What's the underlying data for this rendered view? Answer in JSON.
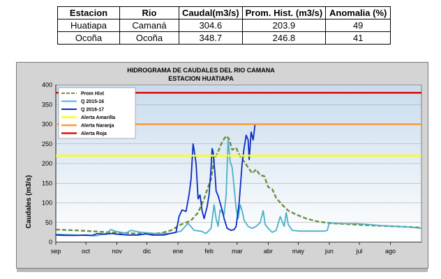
{
  "table": {
    "headers": [
      "Estacion",
      "Rio",
      "Caudal(m3/s)",
      "Prom. Hist. (m3/s)",
      "Anomalia (%)"
    ],
    "rows": [
      [
        "Huatiapa",
        "Camaná",
        "304.6",
        "203.9",
        "49"
      ],
      [
        "Ocoña",
        "Ocoña",
        "348.7",
        "246.8",
        "41"
      ]
    ]
  },
  "chart_data": {
    "type": "line",
    "title": "HIDROGRAMA DE CAUDALES  DEL RIO CAMANA",
    "subtitle": "ESTACION HUATIAPA",
    "ylabel": "Caudales (m3/s)",
    "xlabel": "",
    "ylim": [
      0,
      400
    ],
    "xlim": [
      0,
      365
    ],
    "y_ticks": [
      0,
      50,
      100,
      150,
      200,
      250,
      300,
      350,
      400
    ],
    "x_tick_labels": [
      "sep",
      "oct",
      "nov",
      "dic",
      "ene",
      "feb",
      "mar",
      "abr",
      "may",
      "jun",
      "jul",
      "ago"
    ],
    "x_tick_positions": [
      0,
      30,
      61,
      91,
      122,
      153,
      181,
      212,
      242,
      273,
      303,
      334
    ],
    "grid": true,
    "legend_position": "top-left",
    "series": [
      {
        "name": "Prom Hist",
        "color": "#6b8e3a",
        "style": "dashed",
        "points": [
          [
            0,
            32
          ],
          [
            20,
            30
          ],
          [
            40,
            27
          ],
          [
            60,
            24
          ],
          [
            80,
            22
          ],
          [
            95,
            21
          ],
          [
            105,
            23
          ],
          [
            115,
            30
          ],
          [
            125,
            45
          ],
          [
            135,
            55
          ],
          [
            142,
            75
          ],
          [
            148,
            110
          ],
          [
            152,
            140
          ],
          [
            155,
            160
          ],
          [
            158,
            210
          ],
          [
            162,
            230
          ],
          [
            166,
            255
          ],
          [
            170,
            270
          ],
          [
            173,
            262
          ],
          [
            176,
            235
          ],
          [
            180,
            240
          ],
          [
            184,
            218
          ],
          [
            188,
            205
          ],
          [
            192,
            190
          ],
          [
            196,
            175
          ],
          [
            200,
            185
          ],
          [
            204,
            170
          ],
          [
            208,
            168
          ],
          [
            212,
            140
          ],
          [
            216,
            135
          ],
          [
            220,
            112
          ],
          [
            226,
            95
          ],
          [
            232,
            80
          ],
          [
            240,
            70
          ],
          [
            250,
            60
          ],
          [
            262,
            52
          ],
          [
            275,
            48
          ],
          [
            290,
            46
          ],
          [
            310,
            43
          ],
          [
            330,
            41
          ],
          [
            350,
            39
          ],
          [
            365,
            37
          ]
        ]
      },
      {
        "name": "Q 2015-16",
        "color": "#4ab0c8",
        "style": "solid",
        "points": [
          [
            0,
            20
          ],
          [
            20,
            18
          ],
          [
            40,
            16
          ],
          [
            50,
            22
          ],
          [
            55,
            32
          ],
          [
            60,
            27
          ],
          [
            70,
            23
          ],
          [
            75,
            30
          ],
          [
            85,
            25
          ],
          [
            100,
            22
          ],
          [
            115,
            22
          ],
          [
            125,
            28
          ],
          [
            132,
            48
          ],
          [
            138,
            30
          ],
          [
            145,
            28
          ],
          [
            150,
            22
          ],
          [
            155,
            35
          ],
          [
            158,
            95
          ],
          [
            160,
            60
          ],
          [
            162,
            40
          ],
          [
            164,
            82
          ],
          [
            168,
            70
          ],
          [
            170,
            120
          ],
          [
            172,
            260
          ],
          [
            174,
            205
          ],
          [
            176,
            190
          ],
          [
            178,
            140
          ],
          [
            180,
            85
          ],
          [
            182,
            60
          ],
          [
            184,
            95
          ],
          [
            186,
            80
          ],
          [
            188,
            55
          ],
          [
            192,
            40
          ],
          [
            196,
            35
          ],
          [
            200,
            40
          ],
          [
            204,
            50
          ],
          [
            207,
            80
          ],
          [
            209,
            45
          ],
          [
            212,
            35
          ],
          [
            216,
            25
          ],
          [
            220,
            30
          ],
          [
            224,
            65
          ],
          [
            228,
            40
          ],
          [
            230,
            75
          ],
          [
            232,
            45
          ],
          [
            236,
            30
          ],
          [
            244,
            28
          ],
          [
            252,
            28
          ],
          [
            260,
            28
          ],
          [
            268,
            28
          ],
          [
            271,
            30
          ],
          [
            273,
            50
          ],
          [
            280,
            48
          ],
          [
            290,
            47
          ],
          [
            300,
            47
          ],
          [
            312,
            45
          ],
          [
            325,
            42
          ],
          [
            340,
            40
          ],
          [
            355,
            38
          ],
          [
            365,
            35
          ]
        ]
      },
      {
        "name": "Q 2016-17",
        "color": "#0a2ac0",
        "style": "solid",
        "points": [
          [
            0,
            18
          ],
          [
            10,
            17
          ],
          [
            20,
            17
          ],
          [
            30,
            18
          ],
          [
            36,
            17
          ],
          [
            42,
            22
          ],
          [
            48,
            20
          ],
          [
            56,
            22
          ],
          [
            62,
            20
          ],
          [
            72,
            18
          ],
          [
            82,
            18
          ],
          [
            90,
            21
          ],
          [
            96,
            18
          ],
          [
            102,
            18
          ],
          [
            108,
            18
          ],
          [
            114,
            22
          ],
          [
            120,
            25
          ],
          [
            123,
            65
          ],
          [
            126,
            82
          ],
          [
            130,
            78
          ],
          [
            133,
            120
          ],
          [
            135,
            160
          ],
          [
            137,
            250
          ],
          [
            138,
            235
          ],
          [
            140,
            200
          ],
          [
            142,
            110
          ],
          [
            144,
            120
          ],
          [
            146,
            80
          ],
          [
            148,
            60
          ],
          [
            151,
            90
          ],
          [
            153,
            120
          ],
          [
            155,
            190
          ],
          [
            156,
            238
          ],
          [
            157,
            230
          ],
          [
            159,
            170
          ],
          [
            160,
            130
          ],
          [
            162,
            118
          ],
          [
            164,
            100
          ],
          [
            166,
            82
          ],
          [
            168,
            60
          ],
          [
            171,
            35
          ],
          [
            175,
            30
          ],
          [
            178,
            32
          ],
          [
            180,
            40
          ],
          [
            183,
            100
          ],
          [
            186,
            200
          ],
          [
            188,
            240
          ],
          [
            190,
            272
          ],
          [
            192,
            260
          ],
          [
            193,
            210
          ],
          [
            195,
            280
          ],
          [
            197,
            260
          ],
          [
            199,
            302
          ]
        ]
      },
      {
        "name": "Alerta Amarilla",
        "color": "#ffff00",
        "style": "threshold",
        "value": 220
      },
      {
        "name": "Alerta Naranja",
        "color": "#ff9933",
        "style": "threshold",
        "value": 300
      },
      {
        "name": "Alerta Roja",
        "color": "#dd1111",
        "style": "threshold",
        "value": 380
      }
    ]
  }
}
